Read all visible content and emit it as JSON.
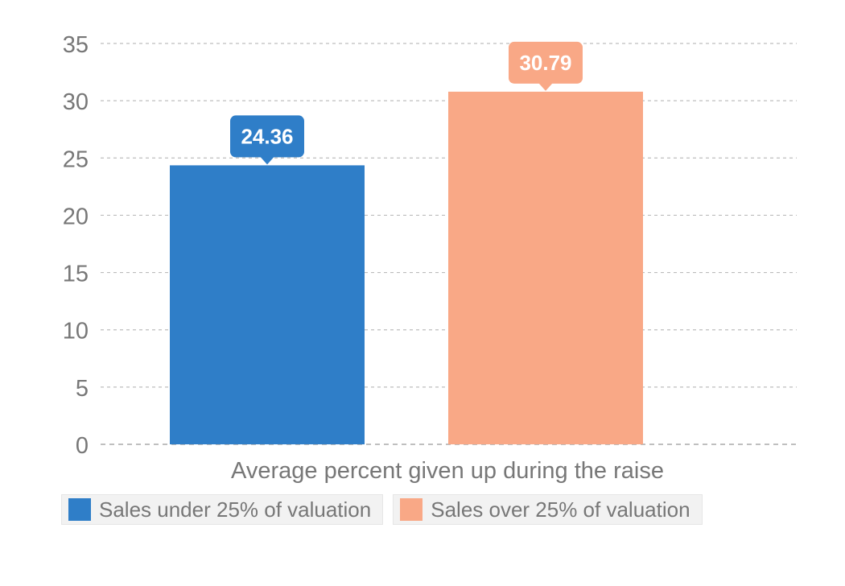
{
  "chart_data": {
    "type": "bar",
    "title": "",
    "xlabel": "Average percent given up during the raise",
    "ylabel": "",
    "ylim": [
      0,
      35
    ],
    "yticks": [
      0,
      5,
      10,
      15,
      20,
      25,
      30,
      35
    ],
    "grid": true,
    "legend_position": "bottom",
    "series": [
      {
        "name": "Sales under 25% of valuation",
        "value": 24.36,
        "label": "24.36",
        "color": "#2f7ec8"
      },
      {
        "name": "Sales over 25% of valuation",
        "value": 30.79,
        "label": "30.79",
        "color": "#f9a886"
      }
    ]
  }
}
